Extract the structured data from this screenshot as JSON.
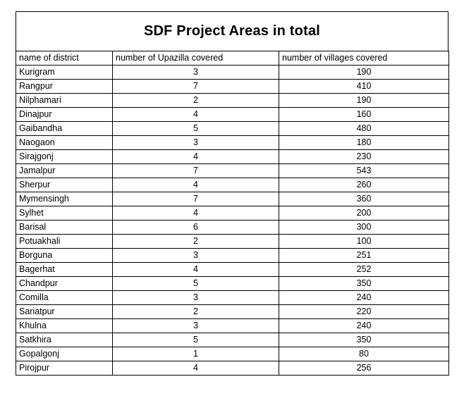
{
  "title": "SDF Project Areas in total",
  "headers": [
    "name of district",
    "number of Upazilla covered",
    "number of villages covered"
  ],
  "rows": [
    [
      " Kurigram",
      "3",
      "190"
    ],
    [
      "Rangpur",
      "7",
      "410"
    ],
    [
      "Nilphamari",
      "2",
      "190"
    ],
    [
      "Dinajpur",
      "4",
      "160"
    ],
    [
      "Gaibandha",
      "5",
      "480"
    ],
    [
      "Naogaon",
      "3",
      "180"
    ],
    [
      "Sirajgonj",
      "4",
      "230"
    ],
    [
      "Jamalpur",
      "7",
      "543"
    ],
    [
      "Sherpur",
      "4",
      "260"
    ],
    [
      "Mymensingh",
      "7",
      "360"
    ],
    [
      "Sylhet",
      "4",
      "200"
    ],
    [
      "Barisal",
      "6",
      "300"
    ],
    [
      "Potuakhali",
      "2",
      "100"
    ],
    [
      "Borguna",
      "3",
      "251"
    ],
    [
      "Bagerhat",
      "4",
      "252"
    ],
    [
      "Chandpur",
      "5",
      "350"
    ],
    [
      "Comilla",
      "3",
      "240"
    ],
    [
      "Sariatpur",
      "2",
      "220"
    ],
    [
      "Khulna",
      "3",
      "240"
    ],
    [
      "Satkhira",
      "5",
      "350"
    ],
    [
      "Gopalgonj",
      "1",
      "80"
    ],
    [
      "Pirojpur",
      "4",
      "256"
    ]
  ]
}
